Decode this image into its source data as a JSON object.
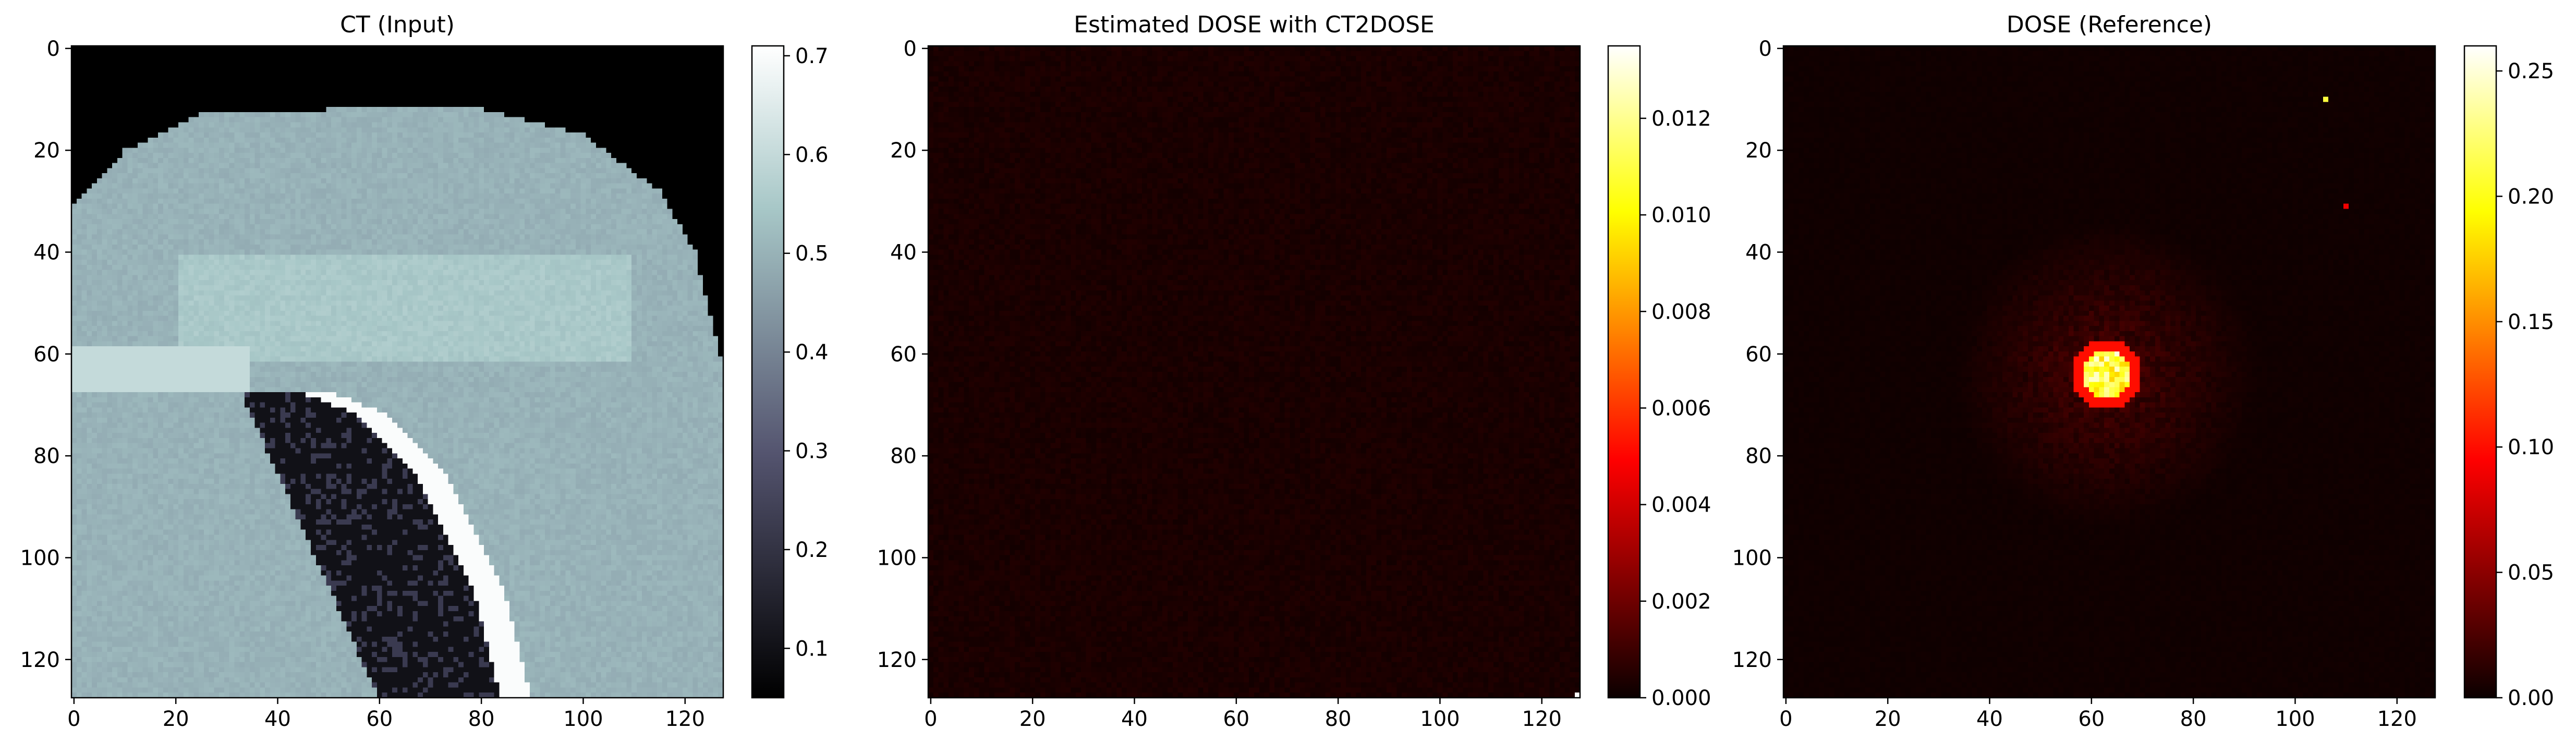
{
  "chart_data": [
    {
      "type": "heatmap",
      "title": "CT (Input)",
      "colormap": "bone",
      "x_ticks": [
        0,
        20,
        40,
        60,
        80,
        100,
        120
      ],
      "y_ticks": [
        0,
        20,
        40,
        60,
        80,
        100,
        120
      ],
      "xlim": [
        0,
        128
      ],
      "ylim": [
        128,
        0
      ],
      "grid_size": [
        128,
        128
      ],
      "colorbar": {
        "range": [
          0.05,
          0.71
        ],
        "ticks": [
          "0.1",
          "0.2",
          "0.3",
          "0.4",
          "0.5",
          "0.6",
          "0.7"
        ]
      },
      "content": {
        "background_value": 0.05,
        "outer_contour_points": [
          [
            0,
            31
          ],
          [
            10,
            20
          ],
          [
            25,
            13
          ],
          [
            50,
            12
          ],
          [
            80,
            12
          ],
          [
            100,
            17
          ],
          [
            115,
            28
          ],
          [
            122,
            40
          ],
          [
            128,
            65
          ]
        ],
        "soft_tissue_value": 0.5,
        "inner_structure_value": 0.55,
        "lung_region_value": 0.1,
        "lung_boundary_points": [
          [
            33,
            68
          ],
          [
            45,
            66
          ],
          [
            60,
            72
          ],
          [
            72,
            85
          ],
          [
            82,
            105
          ],
          [
            88,
            128
          ]
        ],
        "bright_rib_value": 0.7
      }
    },
    {
      "type": "heatmap",
      "title": "Estimated DOSE with CT2DOSE",
      "colormap": "hot",
      "x_ticks": [
        0,
        20,
        40,
        60,
        80,
        100,
        120
      ],
      "y_ticks": [
        0,
        20,
        40,
        60,
        80,
        100,
        120
      ],
      "xlim": [
        0,
        128
      ],
      "ylim": [
        128,
        0
      ],
      "grid_size": [
        128,
        128
      ],
      "colorbar": {
        "range": [
          0.0,
          0.0135
        ],
        "ticks": [
          "0.000",
          "0.002",
          "0.004",
          "0.006",
          "0.008",
          "0.010",
          "0.012"
        ]
      },
      "content": {
        "background_value": 0.0003,
        "hot_pixels": [
          {
            "x": 127,
            "y": 127,
            "value": 0.0135
          }
        ]
      }
    },
    {
      "type": "heatmap",
      "title": "DOSE (Reference)",
      "colormap": "hot",
      "x_ticks": [
        0,
        20,
        40,
        60,
        80,
        100,
        120
      ],
      "y_ticks": [
        0,
        20,
        40,
        60,
        80,
        100,
        120
      ],
      "xlim": [
        0,
        128
      ],
      "ylim": [
        128,
        0
      ],
      "grid_size": [
        128,
        128
      ],
      "colorbar": {
        "range": [
          0.0,
          0.26
        ],
        "ticks": [
          "0.00",
          "0.05",
          "0.10",
          "0.15",
          "0.20",
          "0.25"
        ]
      },
      "content": {
        "background_value": 0.002,
        "hot_spot": {
          "center_x": 63,
          "center_y": 64,
          "radius": 5,
          "peak_value": 0.25
        },
        "halo": {
          "center_x": 63,
          "center_y": 64,
          "radius": 30,
          "value": 0.02
        },
        "hot_pixels": [
          {
            "x": 106,
            "y": 10,
            "value": 0.21
          },
          {
            "x": 110,
            "y": 31,
            "value": 0.09
          }
        ]
      }
    }
  ]
}
